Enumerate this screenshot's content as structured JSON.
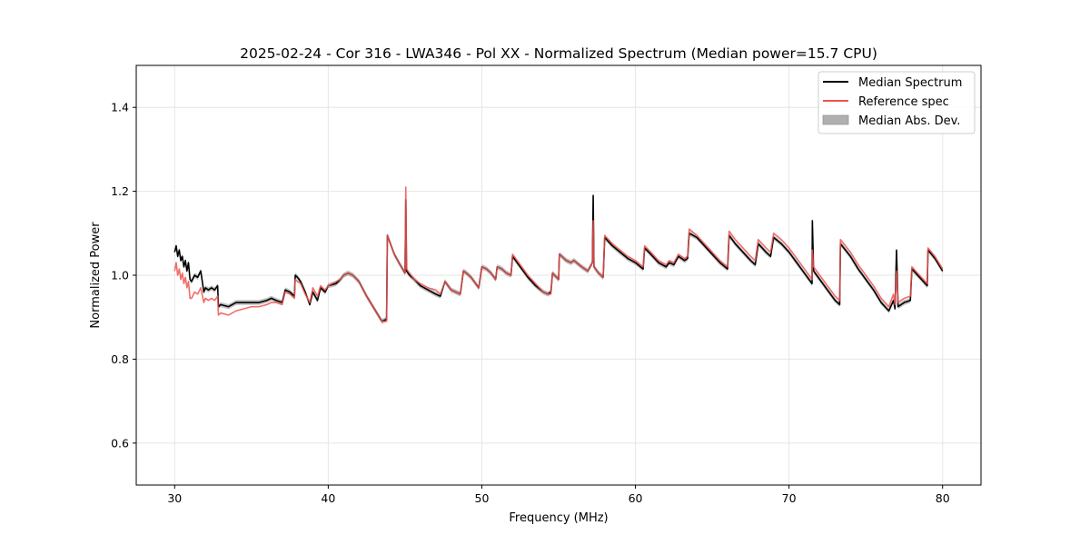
{
  "chart_data": {
    "type": "line",
    "title": "2025-02-24 - Cor 316 - LWA346 - Pol XX - Normalized Spectrum (Median power=15.7 CPU)",
    "xlabel": "Frequency (MHz)",
    "ylabel": "Normalized Power",
    "xlim": [
      27.5,
      82.5
    ],
    "ylim": [
      0.5,
      1.5
    ],
    "xticks": [
      30,
      40,
      50,
      60,
      70,
      80
    ],
    "yticks": [
      0.6,
      0.8,
      1.0,
      1.2,
      1.4
    ],
    "xtick_labels": [
      "30",
      "40",
      "50",
      "60",
      "70",
      "80"
    ],
    "ytick_labels": [
      "0.6",
      "0.8",
      "1.0",
      "1.2",
      "1.4"
    ],
    "grid": true,
    "legend_position": "upper right",
    "legend": [
      "Median Spectrum",
      "Reference spec",
      "Median Abs. Dev."
    ],
    "colors": {
      "median": "#000000",
      "reference": "#ef5350",
      "mad": "#b0b0b0"
    },
    "mad_halfwidth": 0.006,
    "series": [
      {
        "name": "Median Spectrum",
        "x": [
          30.0,
          30.1,
          30.2,
          30.3,
          30.4,
          30.5,
          30.6,
          30.7,
          30.8,
          30.9,
          31.0,
          31.1,
          31.3,
          31.5,
          31.7,
          31.9,
          32.0,
          32.2,
          32.4,
          32.6,
          32.8,
          32.85,
          33.0,
          33.5,
          34.0,
          34.5,
          35.0,
          35.5,
          36.0,
          36.3,
          36.6,
          37.0,
          37.2,
          37.5,
          37.8,
          37.85,
          38.0,
          38.2,
          38.5,
          38.8,
          39.0,
          39.3,
          39.5,
          39.8,
          40.0,
          40.5,
          40.8,
          41.0,
          41.3,
          41.6,
          42.0,
          42.5,
          43.0,
          43.5,
          43.8,
          43.85,
          44.0,
          44.3,
          44.6,
          45.0,
          45.05,
          45.1,
          45.3,
          45.6,
          46.0,
          46.5,
          47.0,
          47.3,
          47.6,
          47.8,
          48.0,
          48.3,
          48.6,
          48.8,
          49.0,
          49.3,
          49.6,
          49.8,
          50.0,
          50.3,
          50.6,
          50.9,
          51.0,
          51.3,
          51.6,
          51.9,
          52.0,
          52.5,
          53.0,
          53.5,
          54.0,
          54.3,
          54.5,
          54.6,
          55.0,
          55.05,
          55.5,
          55.8,
          56.0,
          56.5,
          56.9,
          57.2,
          57.25,
          57.3,
          57.4,
          57.6,
          57.9,
          58.0,
          58.5,
          59.0,
          59.5,
          60.0,
          60.5,
          60.6,
          61.0,
          61.5,
          62.0,
          62.2,
          62.5,
          62.8,
          63.2,
          63.4,
          63.5,
          64.0,
          64.5,
          65.0,
          65.5,
          66.0,
          66.1,
          66.5,
          67.0,
          67.5,
          67.8,
          68.0,
          68.5,
          68.8,
          69.0,
          69.5,
          70.0,
          70.5,
          71.0,
          71.5,
          71.52,
          71.6,
          72.0,
          72.5,
          73.0,
          73.3,
          73.35,
          74.0,
          74.5,
          75.0,
          75.5,
          76.0,
          76.5,
          76.8,
          76.9,
          77.0,
          77.1,
          77.5,
          77.9,
          78.0,
          78.5,
          79.0,
          79.05,
          79.5,
          80.0
        ],
        "y": [
          1.055,
          1.07,
          1.045,
          1.06,
          1.035,
          1.045,
          1.02,
          1.035,
          1.01,
          1.03,
          0.99,
          0.985,
          1.0,
          0.995,
          1.01,
          0.96,
          0.97,
          0.965,
          0.97,
          0.965,
          0.975,
          0.925,
          0.93,
          0.925,
          0.935,
          0.935,
          0.935,
          0.935,
          0.94,
          0.945,
          0.94,
          0.935,
          0.965,
          0.96,
          0.95,
          1.0,
          0.995,
          0.985,
          0.96,
          0.93,
          0.96,
          0.94,
          0.97,
          0.96,
          0.975,
          0.98,
          0.99,
          1.0,
          1.005,
          1.0,
          0.985,
          0.95,
          0.92,
          0.89,
          0.895,
          1.095,
          1.08,
          1.05,
          1.03,
          1.005,
          1.18,
          1.01,
          1.0,
          0.99,
          0.975,
          0.965,
          0.955,
          0.95,
          0.985,
          0.975,
          0.965,
          0.96,
          0.955,
          1.01,
          1.005,
          0.995,
          0.98,
          0.97,
          1.02,
          1.015,
          1.005,
          0.99,
          1.02,
          1.015,
          1.005,
          1.0,
          1.045,
          1.02,
          0.995,
          0.975,
          0.96,
          0.955,
          0.96,
          1.005,
          0.99,
          1.05,
          1.035,
          1.03,
          1.035,
          1.02,
          1.01,
          1.03,
          1.19,
          1.02,
          1.015,
          1.005,
          0.995,
          1.09,
          1.07,
          1.055,
          1.04,
          1.03,
          1.015,
          1.065,
          1.05,
          1.03,
          1.02,
          1.03,
          1.025,
          1.045,
          1.035,
          1.04,
          1.1,
          1.09,
          1.07,
          1.05,
          1.03,
          1.015,
          1.095,
          1.075,
          1.055,
          1.035,
          1.025,
          1.075,
          1.055,
          1.045,
          1.09,
          1.075,
          1.055,
          1.03,
          1.005,
          0.98,
          1.13,
          1.01,
          0.99,
          0.965,
          0.94,
          0.93,
          1.075,
          1.045,
          1.015,
          0.99,
          0.965,
          0.935,
          0.915,
          0.94,
          0.92,
          1.06,
          0.925,
          0.935,
          0.94,
          1.015,
          0.995,
          0.975,
          1.06,
          1.04,
          1.01
        ]
      },
      {
        "name": "Reference spec",
        "x": [
          30.0,
          30.1,
          30.2,
          30.3,
          30.4,
          30.5,
          30.6,
          30.7,
          30.8,
          30.9,
          31.0,
          31.1,
          31.3,
          31.5,
          31.7,
          31.9,
          32.0,
          32.2,
          32.4,
          32.6,
          32.8,
          32.85,
          33.0,
          33.5,
          34.0,
          34.5,
          35.0,
          35.5,
          36.0,
          36.3,
          36.6,
          37.0,
          37.2,
          37.5,
          37.8,
          37.85,
          38.0,
          38.2,
          38.5,
          38.8,
          39.0,
          39.3,
          39.5,
          39.8,
          40.0,
          40.5,
          40.8,
          41.0,
          41.3,
          41.6,
          42.0,
          42.5,
          43.0,
          43.5,
          43.8,
          43.85,
          44.0,
          44.3,
          44.6,
          45.0,
          45.05,
          45.1,
          45.3,
          45.6,
          46.0,
          46.5,
          47.0,
          47.3,
          47.6,
          47.8,
          48.0,
          48.3,
          48.6,
          48.8,
          49.0,
          49.3,
          49.6,
          49.8,
          50.0,
          50.3,
          50.6,
          50.9,
          51.0,
          51.3,
          51.6,
          51.9,
          52.0,
          52.5,
          53.0,
          53.5,
          54.0,
          54.3,
          54.5,
          54.6,
          55.0,
          55.05,
          55.5,
          55.8,
          56.0,
          56.5,
          56.9,
          57.2,
          57.25,
          57.3,
          57.4,
          57.6,
          57.9,
          58.0,
          58.5,
          59.0,
          59.5,
          60.0,
          60.5,
          60.6,
          61.0,
          61.5,
          62.0,
          62.2,
          62.5,
          62.8,
          63.2,
          63.4,
          63.5,
          64.0,
          64.5,
          65.0,
          65.5,
          66.0,
          66.1,
          66.5,
          67.0,
          67.5,
          67.8,
          68.0,
          68.5,
          68.8,
          69.0,
          69.5,
          70.0,
          70.5,
          71.0,
          71.5,
          71.52,
          71.6,
          72.0,
          72.5,
          73.0,
          73.3,
          73.35,
          74.0,
          74.5,
          75.0,
          75.5,
          76.0,
          76.5,
          76.8,
          76.9,
          77.0,
          77.1,
          77.5,
          77.9,
          78.0,
          78.5,
          79.0,
          79.05,
          79.5,
          80.0
        ],
        "y": [
          1.01,
          1.03,
          1.0,
          1.015,
          0.99,
          1.005,
          0.98,
          0.995,
          0.97,
          0.985,
          0.945,
          0.945,
          0.96,
          0.955,
          0.97,
          0.935,
          0.945,
          0.94,
          0.945,
          0.94,
          0.95,
          0.905,
          0.91,
          0.905,
          0.915,
          0.92,
          0.925,
          0.925,
          0.93,
          0.935,
          0.935,
          0.93,
          0.96,
          0.955,
          0.945,
          0.99,
          0.985,
          0.98,
          0.955,
          0.935,
          0.97,
          0.95,
          0.975,
          0.965,
          0.975,
          0.985,
          0.99,
          1.0,
          1.005,
          1.0,
          0.985,
          0.95,
          0.92,
          0.89,
          0.89,
          1.095,
          1.08,
          1.05,
          1.03,
          1.005,
          1.21,
          1.015,
          1.005,
          0.99,
          0.98,
          0.97,
          0.965,
          0.955,
          0.985,
          0.975,
          0.965,
          0.96,
          0.955,
          1.01,
          1.005,
          0.995,
          0.98,
          0.97,
          1.02,
          1.015,
          1.005,
          0.99,
          1.02,
          1.015,
          1.005,
          1.0,
          1.05,
          1.025,
          1.0,
          0.98,
          0.96,
          0.955,
          0.955,
          1.005,
          0.99,
          1.05,
          1.035,
          1.03,
          1.035,
          1.02,
          1.01,
          1.03,
          1.13,
          1.02,
          1.015,
          1.005,
          0.995,
          1.095,
          1.075,
          1.06,
          1.045,
          1.035,
          1.02,
          1.07,
          1.055,
          1.035,
          1.025,
          1.035,
          1.03,
          1.05,
          1.04,
          1.045,
          1.11,
          1.095,
          1.075,
          1.055,
          1.035,
          1.02,
          1.105,
          1.085,
          1.065,
          1.045,
          1.035,
          1.085,
          1.065,
          1.055,
          1.1,
          1.085,
          1.065,
          1.04,
          1.015,
          0.99,
          1.06,
          1.02,
          1.0,
          0.975,
          0.95,
          0.94,
          1.085,
          1.055,
          1.025,
          1.0,
          0.975,
          0.945,
          0.925,
          0.955,
          0.93,
          1.01,
          0.935,
          0.945,
          0.95,
          1.02,
          1.0,
          0.98,
          1.065,
          1.045,
          1.015
        ]
      }
    ]
  }
}
